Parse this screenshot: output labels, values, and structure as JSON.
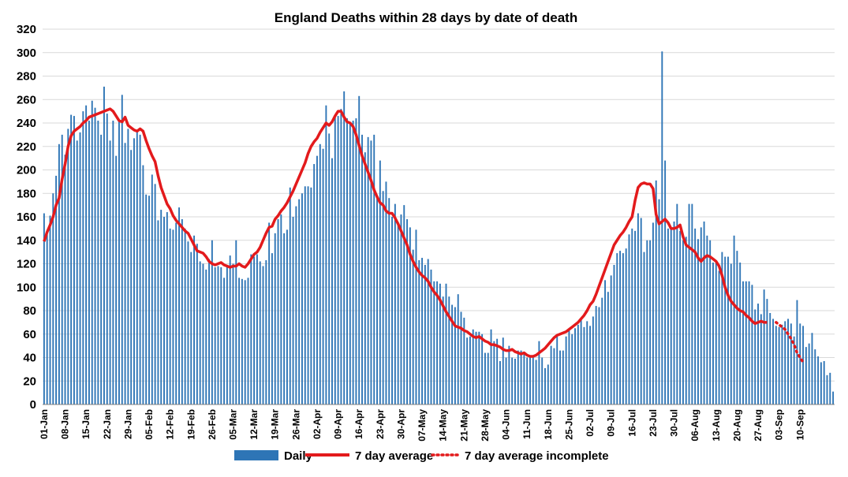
{
  "chart_data": {
    "type": "bar",
    "title": "England Deaths within 28 days by date of death",
    "xlabel": "",
    "ylabel": "",
    "ylim": [
      0,
      320
    ],
    "ytick_step": 20,
    "grid": true,
    "legend_position": "bottom",
    "start_date": "2021-01-01",
    "tick_labels": [
      "01-Jan",
      "08-Jan",
      "15-Jan",
      "22-Jan",
      "29-Jan",
      "05-Feb",
      "12-Feb",
      "19-Feb",
      "26-Feb",
      "05-Mar",
      "12-Mar",
      "19-Mar",
      "26-Mar",
      "02-Apr",
      "09-Apr",
      "16-Apr",
      "23-Apr",
      "30-Apr",
      "07-May",
      "14-May",
      "21-May",
      "28-May",
      "04-Jun",
      "11-Jun",
      "18-Jun",
      "25-Jun",
      "02-Jul",
      "09-Jul",
      "16-Jul",
      "23-Jul",
      "30-Jul",
      "06-Aug",
      "13-Aug",
      "20-Aug",
      "27-Aug",
      "03-Sep",
      "10-Sep"
    ],
    "colors": {
      "bars": "#2e75b6",
      "average": "#e31a1c",
      "grid": "#d9d9d9",
      "axis": "#7f7f7f"
    },
    "series": [
      {
        "name": "Daily",
        "values": [
          163,
          145,
          161,
          180,
          195,
          222,
          230,
          213,
          235,
          247,
          246,
          225,
          232,
          250,
          255,
          242,
          259,
          253,
          242,
          230,
          271,
          248,
          225,
          242,
          212,
          243,
          264,
          223,
          235,
          217,
          227,
          233,
          230,
          204,
          179,
          178,
          196,
          188,
          157,
          166,
          160,
          164,
          150,
          149,
          155,
          168,
          158,
          150,
          139,
          130,
          144,
          137,
          122,
          120,
          115,
          124,
          140,
          117,
          118,
          117,
          108,
          119,
          127,
          120,
          140,
          108,
          107,
          106,
          108,
          128,
          126,
          128,
          122,
          118,
          123,
          155,
          129,
          146,
          158,
          162,
          146,
          149,
          185,
          160,
          169,
          175,
          180,
          186,
          186,
          185,
          205,
          212,
          222,
          218,
          255,
          231,
          210,
          246,
          246,
          252,
          267,
          244,
          240,
          242,
          244,
          263,
          230,
          215,
          228,
          225,
          230,
          178,
          208,
          182,
          190,
          176,
          160,
          171,
          154,
          162,
          170,
          158,
          151,
          132,
          149,
          123,
          125,
          119,
          124,
          115,
          105,
          105,
          103,
          92,
          103,
          92,
          85,
          83,
          94,
          79,
          74,
          57,
          58,
          64,
          62,
          62,
          60,
          44,
          44,
          64,
          54,
          56,
          37,
          57,
          40,
          50,
          40,
          39,
          46,
          46,
          45,
          40,
          40,
          41,
          38,
          54,
          40,
          31,
          34,
          50,
          48,
          58,
          46,
          46,
          58,
          63,
          60,
          65,
          68,
          72,
          66,
          71,
          67,
          75,
          84,
          83,
          91,
          106,
          96,
          110,
          119,
          129,
          131,
          129,
          133,
          145,
          150,
          148,
          163,
          159,
          130,
          140,
          140,
          155,
          191,
          175,
          301,
          208,
          150,
          150,
          156,
          171,
          148,
          140,
          143,
          171,
          171,
          150,
          141,
          151,
          156,
          144,
          140,
          121,
          121,
          114,
          130,
          126,
          126,
          120,
          144,
          131,
          121,
          105,
          105,
          105,
          102,
          81,
          86,
          77,
          98,
          90,
          78,
          73,
          67,
          66,
          68,
          71,
          73,
          69,
          58,
          89,
          69,
          67,
          49,
          52,
          61,
          47,
          41,
          36,
          37,
          25,
          27,
          11
        ]
      },
      {
        "name": "7 day average",
        "values": [
          139,
          147,
          153,
          160,
          170,
          176,
          192,
          205,
          220,
          229,
          233,
          235,
          237,
          240,
          242,
          245,
          246,
          247,
          248,
          249,
          250,
          251,
          252,
          250,
          246,
          242,
          241,
          245,
          238,
          236,
          234,
          233,
          235,
          233,
          225,
          218,
          212,
          207,
          195,
          185,
          178,
          171,
          167,
          161,
          157,
          154,
          151,
          148,
          146,
          141,
          136,
          131,
          130,
          129,
          126,
          122,
          120,
          119,
          120,
          121,
          119,
          118,
          117,
          118,
          118,
          120,
          118,
          117,
          120,
          124,
          128,
          130,
          134,
          140,
          146,
          151,
          152,
          158,
          161,
          165,
          168,
          172,
          177,
          182,
          188,
          194,
          200,
          206,
          214,
          220,
          224,
          227,
          232,
          236,
          240,
          238,
          241,
          246,
          250,
          250,
          245,
          241,
          240,
          237,
          230,
          221,
          212,
          205,
          198,
          191,
          183,
          177,
          172,
          170,
          165,
          163,
          163,
          159,
          154,
          148,
          142,
          136,
          128,
          122,
          117,
          113,
          110,
          108,
          105,
          100,
          96,
          93,
          89,
          84,
          79,
          75,
          71,
          67,
          66,
          65,
          63,
          62,
          60,
          58,
          57,
          58,
          56,
          54,
          53,
          51,
          51,
          50,
          49,
          47,
          46,
          46,
          47,
          45,
          44,
          43,
          44,
          42,
          41,
          41,
          42,
          44,
          46,
          48,
          51,
          54,
          57,
          59,
          60,
          61,
          62,
          64,
          66,
          68,
          70,
          73,
          76,
          80,
          85,
          88,
          94,
          101,
          108,
          115,
          122,
          129,
          136,
          140,
          144,
          147,
          151,
          156,
          160,
          174,
          185,
          188,
          189,
          188,
          188,
          184,
          162,
          154,
          156,
          158,
          155,
          150,
          150,
          151,
          153,
          143,
          136,
          134,
          132,
          130,
          125,
          122,
          125,
          127,
          126,
          124,
          122,
          118,
          110,
          100,
          93,
          88,
          85,
          82,
          80,
          79,
          76,
          74,
          71,
          69,
          70,
          71,
          70,
          70
        ],
        "style": "solid"
      },
      {
        "name": "7 day average incomplete",
        "values": [
          70,
          68,
          66,
          64,
          60,
          56,
          51,
          44,
          40,
          36
        ],
        "start_index": 244,
        "style": "dotted"
      }
    ]
  }
}
